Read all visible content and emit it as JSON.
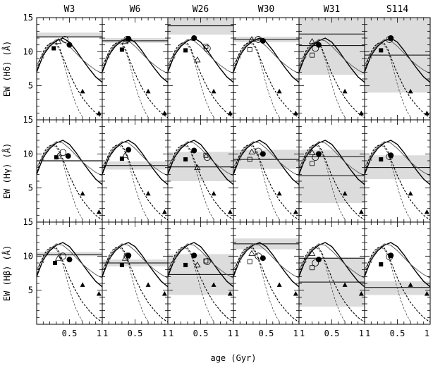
{
  "chart_data": {
    "type": "line",
    "column_titles": [
      "W3",
      "W6",
      "W26",
      "W30",
      "W31",
      "S114"
    ],
    "row_labels": [
      "EW (Hδ) (Å)",
      "EW (Hγ) (Å)",
      "EW (Hβ) (Å)"
    ],
    "xlabel": "age (Gyr)",
    "x_tick_labels": [
      "0.5",
      "1"
    ],
    "y_tick_labels": [
      "15",
      "10",
      "5"
    ],
    "x_axis": {
      "range": [
        0.0,
        1.0
      ],
      "ticks": [
        0.5,
        1.0
      ]
    },
    "y_axis": {
      "range": [
        0,
        15
      ],
      "ticks": [
        15,
        10,
        5
      ]
    },
    "series": [
      {
        "style": "solid-thick",
        "x": [
          0.0,
          0.1,
          0.2,
          0.3,
          0.4,
          0.5,
          0.6,
          0.7,
          0.8,
          0.9,
          1.0
        ],
        "values": [
          7.0,
          9.5,
          10.8,
          11.6,
          12.0,
          11.4,
          10.2,
          8.8,
          7.5,
          6.3,
          5.5
        ]
      },
      {
        "style": "solid-thin",
        "x": [
          0.0,
          0.1,
          0.2,
          0.3,
          0.4,
          0.5,
          0.6,
          0.7,
          0.8,
          0.9,
          1.0
        ],
        "values": [
          8.0,
          9.8,
          11.0,
          11.8,
          11.6,
          10.8,
          9.8,
          8.8,
          8.0,
          7.3,
          6.8
        ]
      },
      {
        "style": "dashed-thick",
        "x": [
          0.0,
          0.05,
          0.1,
          0.15,
          0.2,
          0.25,
          0.3,
          0.35,
          0.4,
          0.5,
          0.6,
          0.7,
          0.8,
          0.9,
          1.0
        ],
        "values": [
          7.0,
          8.8,
          10.0,
          10.8,
          11.2,
          11.4,
          11.2,
          10.5,
          9.2,
          6.8,
          4.8,
          3.2,
          2.0,
          1.0,
          0.3
        ]
      },
      {
        "style": "dashed-thin",
        "x": [
          0.1,
          0.15,
          0.2,
          0.25,
          0.3,
          0.35,
          0.4,
          0.45,
          0.5,
          0.55,
          0.6,
          0.65,
          0.7
        ],
        "values": [
          9.0,
          10.5,
          11.2,
          11.3,
          11.0,
          10.2,
          8.8,
          7.0,
          5.2,
          3.6,
          2.3,
          1.2,
          0.4
        ]
      }
    ],
    "filled_triangles": [
      {
        "x": 0.95,
        "values": [
          1.0,
          1.5,
          4.5
        ]
      },
      {
        "x": 0.7,
        "values": [
          4.2,
          4.2,
          5.8
        ]
      }
    ],
    "panels": [
      [
        {
          "band": [
            12.0,
            12.8
          ],
          "line": 12.2,
          "filled_circle": [
            0.5,
            11.0
          ],
          "open_circle": [
            0.43,
            11.8
          ],
          "open_square": null,
          "filled_square": [
            0.26,
            10.5
          ],
          "open_triangle": [
            0.33,
            11.5
          ]
        },
        {
          "band": [
            8.8,
            9.1
          ],
          "line": 9.0,
          "filled_circle": [
            0.48,
            9.7
          ],
          "open_circle": [
            0.4,
            10.2
          ],
          "open_square": null,
          "filled_square": [
            0.3,
            9.5
          ],
          "open_triangle": [
            0.33,
            9.7
          ]
        },
        {
          "band": [
            10.0,
            10.6
          ],
          "line": 10.2,
          "filled_circle": [
            0.5,
            9.5
          ],
          "open_circle": [
            0.4,
            10.0
          ],
          "open_square": null,
          "filled_square": [
            0.28,
            9.0
          ],
          "open_triangle": [
            0.33,
            9.7
          ]
        }
      ],
      [
        {
          "band": [
            11.3,
            12.0
          ],
          "line": 11.6,
          "filled_circle": [
            0.4,
            11.9
          ],
          "open_circle": [
            0.38,
            11.8
          ],
          "open_square": null,
          "filled_square": [
            0.3,
            10.3
          ],
          "open_triangle": [
            0.35,
            11.5
          ]
        },
        {
          "band": [
            7.7,
            8.9
          ],
          "line": 8.3,
          "filled_circle": [
            0.4,
            10.6
          ],
          "open_circle": null,
          "open_square": null,
          "filled_square": [
            0.3,
            9.3
          ],
          "open_triangle": [
            0.35,
            9.8
          ]
        },
        {
          "band": [
            8.5,
            9.5
          ],
          "line": 9.0,
          "filled_circle": [
            0.4,
            10.1
          ],
          "open_circle": [
            0.38,
            10.0
          ],
          "open_square": null,
          "filled_square": [
            0.3,
            8.7
          ],
          "open_triangle": [
            0.35,
            9.7
          ]
        }
      ],
      [
        {
          "band": [
            12.5,
            15.0
          ],
          "line": 13.8,
          "filled_circle": [
            0.4,
            12.0
          ],
          "open_circle": [
            0.6,
            10.5
          ],
          "open_square": [
            0.58,
            10.8
          ],
          "filled_square": [
            0.27,
            10.2
          ],
          "open_triangle": [
            0.45,
            8.8
          ]
        },
        {
          "band": [
            6.0,
            10.3
          ],
          "line": 8.1,
          "filled_circle": [
            0.4,
            10.5
          ],
          "open_circle": [
            0.6,
            9.5
          ],
          "open_square": [
            0.58,
            9.8
          ],
          "filled_square": [
            0.27,
            9.2
          ],
          "open_triangle": [
            0.45,
            8.0
          ]
        },
        {
          "band": [
            4.3,
            10.3
          ],
          "line": 7.3,
          "filled_circle": [
            0.4,
            10.1
          ],
          "open_circle": [
            0.6,
            9.2
          ],
          "open_square": [
            0.58,
            9.3
          ],
          "filled_square": [
            0.27,
            8.7
          ],
          "open_triangle": [
            0.45,
            8.7
          ]
        }
      ],
      [
        {
          "band": [
            11.4,
            12.2
          ],
          "line": 11.8,
          "filled_circle": [
            0.45,
            11.6
          ],
          "open_circle": [
            0.38,
            11.8
          ],
          "open_square": [
            0.25,
            10.3
          ],
          "filled_square": null,
          "open_triangle": [
            0.28,
            11.8
          ]
        },
        {
          "band": [
            7.8,
            10.6
          ],
          "line": 9.2,
          "filled_circle": [
            0.45,
            10.0
          ],
          "open_circle": [
            0.38,
            10.4
          ],
          "open_square": [
            0.25,
            9.2
          ],
          "filled_square": null,
          "open_triangle": [
            0.28,
            10.3
          ]
        },
        {
          "band": [
            11.0,
            12.6
          ],
          "line": 11.8,
          "filled_circle": [
            0.45,
            9.7
          ],
          "open_circle": [
            0.38,
            10.0
          ],
          "open_square": [
            0.25,
            9.2
          ],
          "filled_square": null,
          "open_triangle": [
            0.28,
            10.4
          ]
        }
      ],
      [
        {
          "band": [
            6.6,
            15.0
          ],
          "line": 12.6,
          "line2": 10.9,
          "filled_circle": [
            0.3,
            11.0
          ],
          "open_circle": [
            0.25,
            10.5
          ],
          "open_square": [
            0.2,
            9.5
          ],
          "filled_square": null,
          "open_triangle": [
            0.2,
            11.5
          ]
        },
        {
          "band": [
            2.8,
            10.6
          ],
          "line": 6.8,
          "line2": 9.6,
          "filled_circle": [
            0.3,
            10.0
          ],
          "open_circle": [
            0.25,
            9.5
          ],
          "open_square": [
            0.2,
            8.6
          ],
          "filled_square": null,
          "open_triangle": [
            0.2,
            10.2
          ]
        },
        {
          "band": [
            2.6,
            9.8
          ],
          "line": 6.2,
          "line2": 9.7,
          "filled_circle": [
            0.3,
            9.5
          ],
          "open_circle": [
            0.25,
            9.0
          ],
          "open_square": [
            0.2,
            8.3
          ],
          "filled_square": null,
          "open_triangle": [
            0.2,
            10.4
          ]
        }
      ],
      [
        {
          "band": [
            4.0,
            15.0
          ],
          "line": 9.5,
          "filled_circle": [
            0.4,
            12.0
          ],
          "open_circle": [
            0.38,
            11.8
          ],
          "open_square": null,
          "filled_square": [
            0.25,
            10.2
          ],
          "open_triangle": null
        },
        {
          "band": [
            6.3,
            9.8
          ],
          "line": 8.0,
          "filled_circle": [
            0.4,
            9.8
          ],
          "open_circle": [
            0.38,
            9.6
          ],
          "open_square": null,
          "filled_square": [
            0.25,
            9.2
          ],
          "open_triangle": null
        },
        {
          "band": [
            4.3,
            6.3
          ],
          "line": 5.4,
          "filled_circle": [
            0.4,
            10.1
          ],
          "open_circle": [
            0.38,
            9.9
          ],
          "open_square": null,
          "filled_square": [
            0.25,
            8.8
          ],
          "open_triangle": null
        }
      ]
    ]
  }
}
